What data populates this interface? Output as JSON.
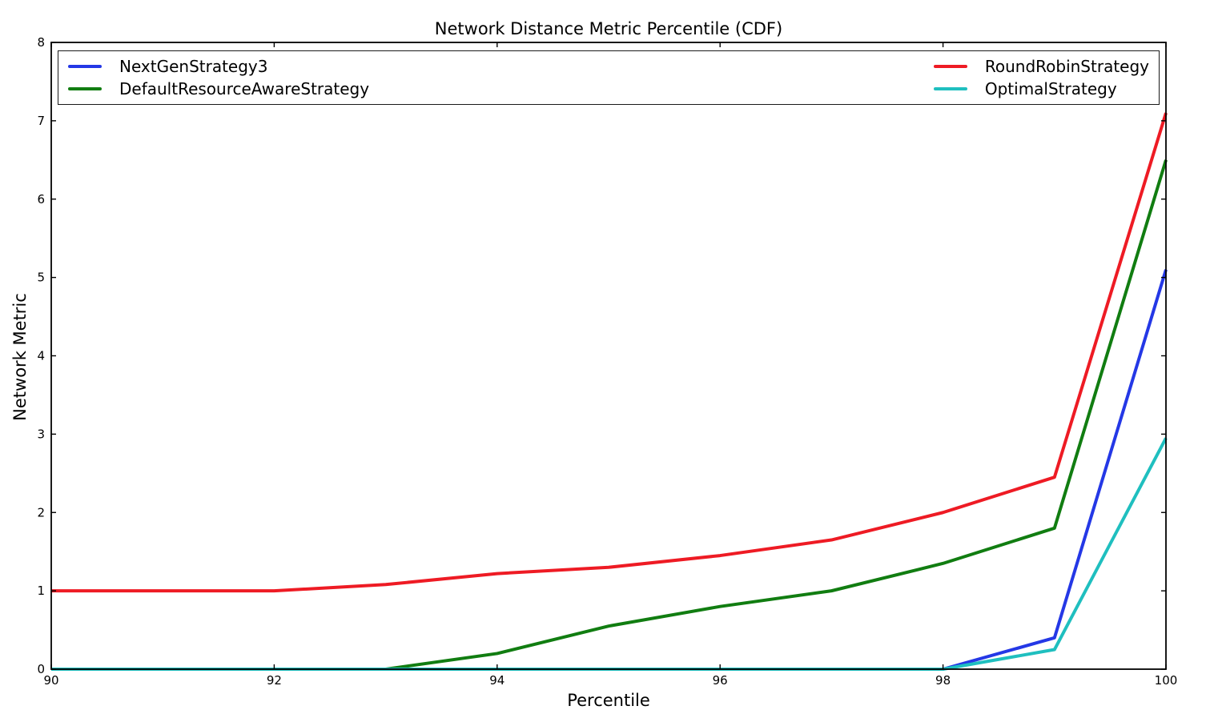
{
  "chart_data": {
    "type": "line",
    "title": "Network Distance Metric Percentile (CDF)",
    "xlabel": "Percentile",
    "ylabel": "Network Metric",
    "xlim": [
      90,
      100
    ],
    "ylim": [
      0,
      8
    ],
    "x_ticks": [
      90,
      92,
      94,
      96,
      98,
      100
    ],
    "y_ticks": [
      0,
      1,
      2,
      3,
      4,
      5,
      6,
      7,
      8
    ],
    "grid": false,
    "legend_position": "top-expanded-2-columns",
    "x": [
      90,
      91,
      92,
      93,
      94,
      95,
      96,
      97,
      98,
      99,
      100
    ],
    "series": [
      {
        "name": "NextGenStrategy3",
        "color": "#2438e6",
        "values": [
          0,
          0,
          0,
          0,
          0,
          0,
          0,
          0,
          0,
          0.4,
          5.1
        ]
      },
      {
        "name": "DefaultResourceAwareStrategy",
        "color": "#117d11",
        "values": [
          0,
          0,
          0,
          0,
          0.2,
          0.55,
          0.8,
          1.0,
          1.35,
          1.8,
          6.5
        ]
      },
      {
        "name": "RoundRobinStrategy",
        "color": "#ee1b24",
        "values": [
          1.0,
          1.0,
          1.0,
          1.08,
          1.22,
          1.3,
          1.45,
          1.65,
          2.0,
          2.45,
          7.1
        ]
      },
      {
        "name": "OptimalStrategy",
        "color": "#1fbfbf",
        "values": [
          0,
          0,
          0,
          0,
          0,
          0,
          0,
          0,
          0,
          0.25,
          2.95
        ]
      }
    ]
  }
}
